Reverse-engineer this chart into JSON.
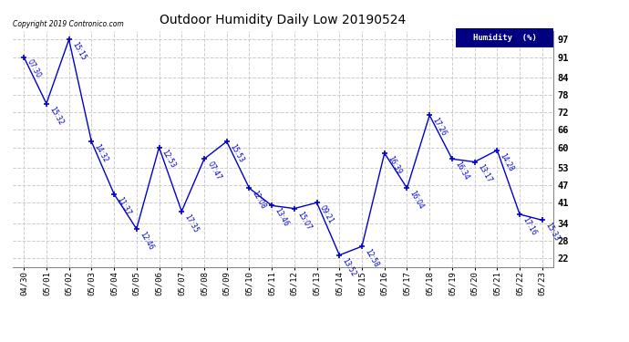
{
  "title": "Outdoor Humidity Daily Low 20190524",
  "dates": [
    "04/30",
    "05/01",
    "05/02",
    "05/03",
    "05/04",
    "05/05",
    "05/06",
    "05/07",
    "05/08",
    "05/09",
    "05/10",
    "05/11",
    "05/12",
    "05/13",
    "05/14",
    "05/15",
    "05/16",
    "05/17",
    "05/18",
    "05/19",
    "05/20",
    "05/21",
    "05/22",
    "05/23"
  ],
  "values": [
    91,
    75,
    97,
    62,
    44,
    32,
    60,
    38,
    56,
    62,
    46,
    40,
    39,
    41,
    23,
    26,
    58,
    46,
    71,
    56,
    55,
    59,
    37,
    35
  ],
  "times": [
    "07:30",
    "15:32",
    "15:15",
    "14:32",
    "11:37",
    "12:46",
    "12:53",
    "17:35",
    "07:47",
    "15:53",
    "12:08",
    "13:46",
    "15:07",
    "09:21",
    "13:52",
    "12:58",
    "16:39",
    "16:04",
    "17:26",
    "16:34",
    "13:17",
    "14:28",
    "17:16",
    "15:33"
  ],
  "line_color": "#0000CC",
  "marker_color": "#000080",
  "grid_color": "#CCCCCC",
  "background_color": "#FFFFFF",
  "legend_bg": "#000080",
  "legend_text": "Humidity  (%)",
  "copyright": "Copyright 2019 Contronico.com",
  "yticks": [
    22,
    28,
    34,
    41,
    47,
    53,
    60,
    66,
    72,
    78,
    84,
    91,
    97
  ],
  "ylim": [
    19,
    100
  ],
  "figsize": [
    6.9,
    3.75
  ],
  "dpi": 100
}
